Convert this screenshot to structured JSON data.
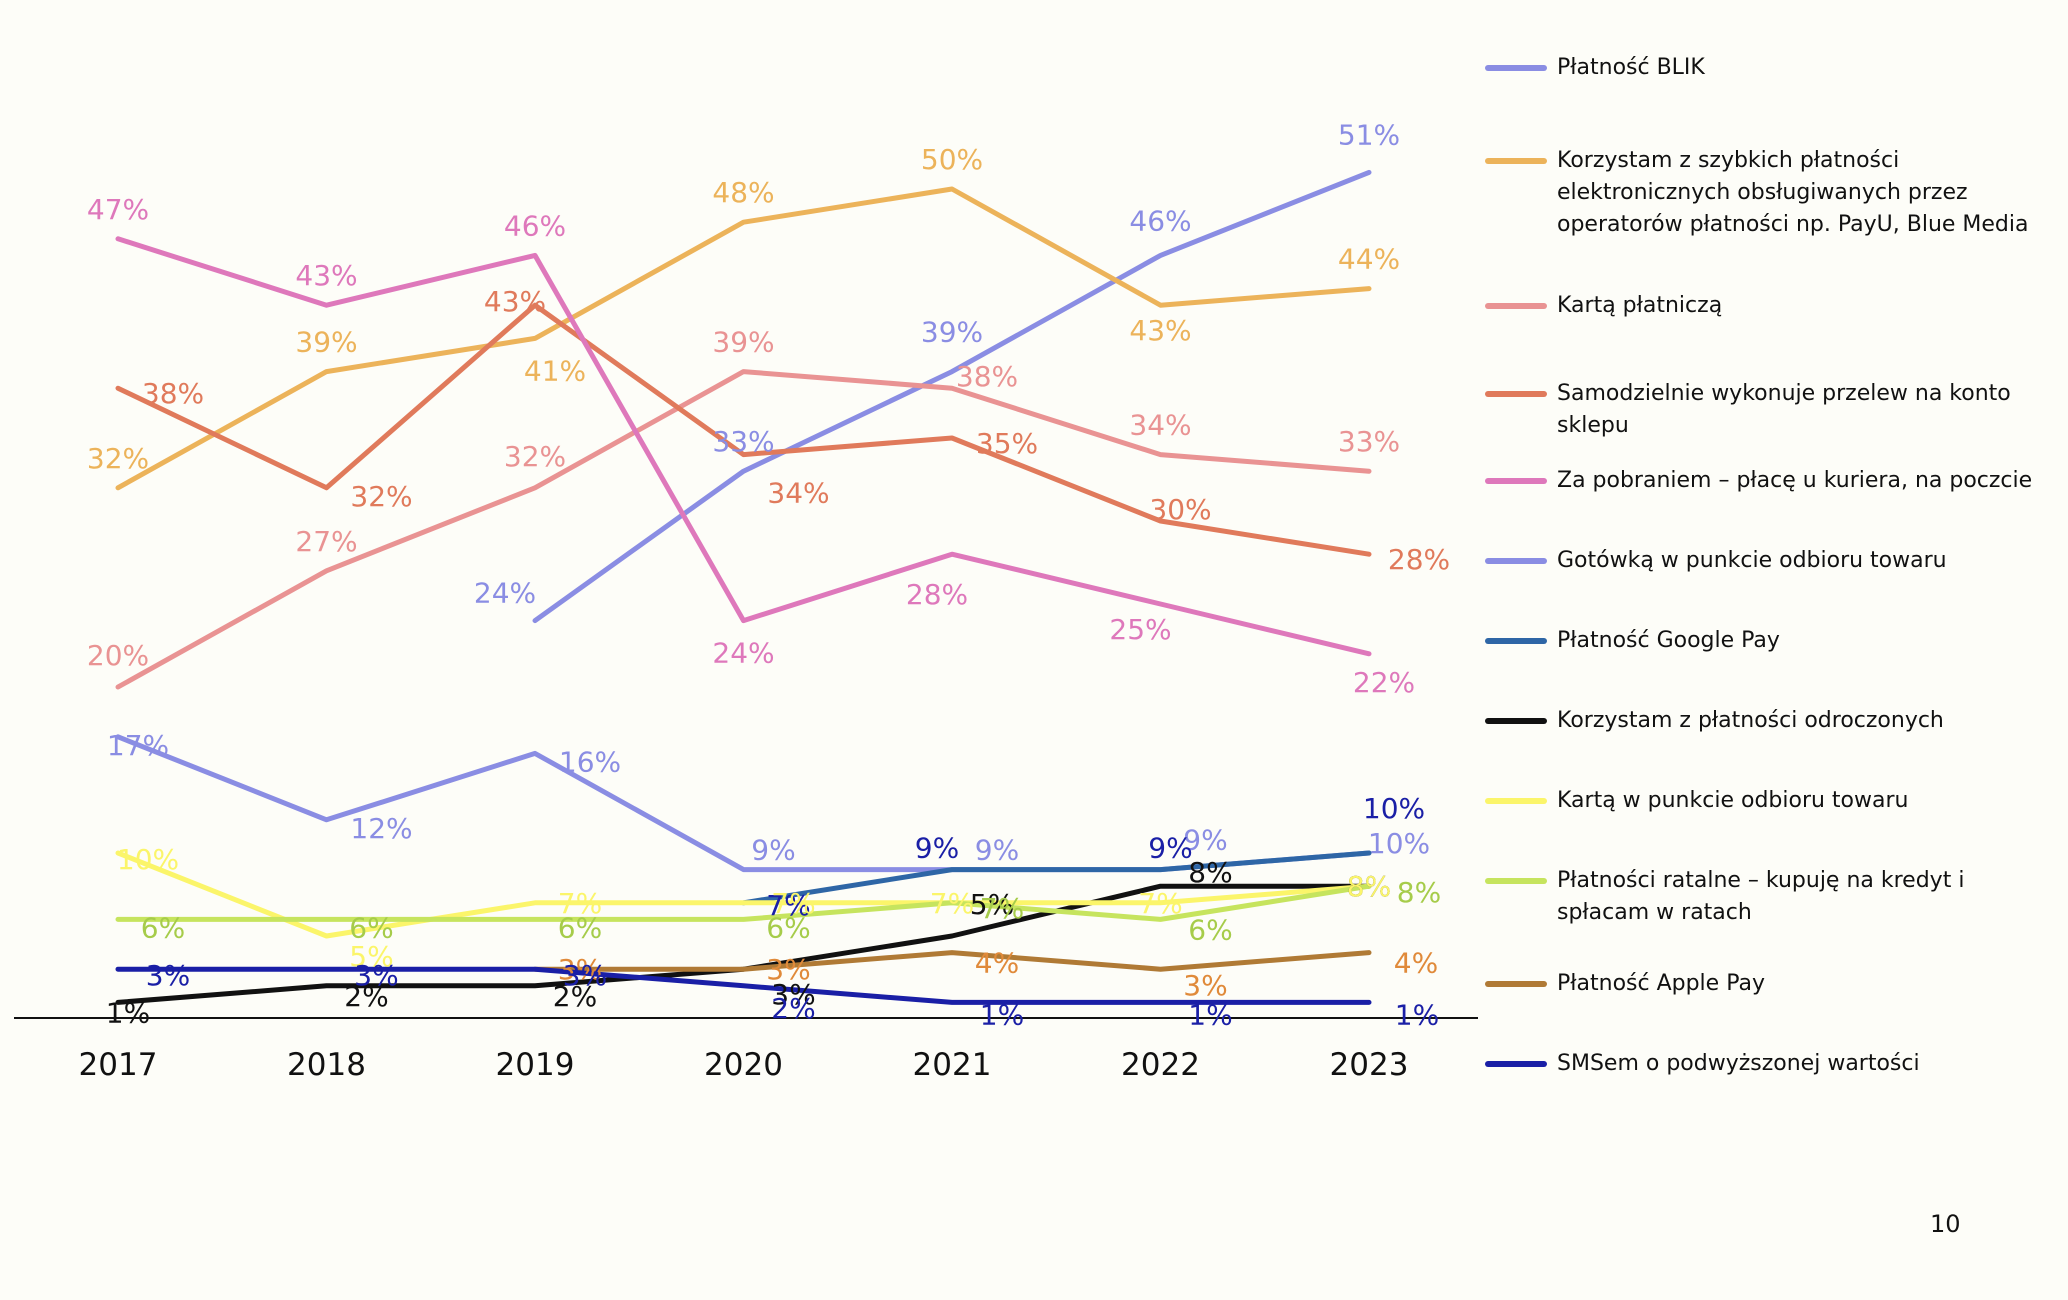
{
  "chart_data": {
    "type": "line",
    "title": "",
    "xlabel": "",
    "ylabel": "",
    "categories": [
      "2017",
      "2018",
      "2019",
      "2020",
      "2021",
      "2022",
      "2023"
    ],
    "ylim": [
      0,
      55
    ],
    "grid": false,
    "legend_position": "right",
    "series": [
      {
        "name": "Płatność BLIK",
        "color": "#8a8de3",
        "values": [
          null,
          null,
          24,
          33,
          39,
          46,
          51
        ],
        "labels": [
          "",
          "",
          "24%",
          "33%",
          "39%",
          "46%",
          "51%"
        ]
      },
      {
        "name": "Korzystam z szybkich płatności elektronicznych obsługiwanych przez operatorów płatności np. PayU, Blue Media",
        "color": "#ecb35a",
        "values": [
          32,
          39,
          41,
          48,
          50,
          43,
          44
        ],
        "labels": [
          "32%",
          "39%",
          "41%",
          "48%",
          "50%",
          "43%",
          "44%"
        ]
      },
      {
        "name": "Kartą płatniczą",
        "color": "#e99393",
        "values": [
          20,
          27,
          32,
          39,
          38,
          34,
          33
        ],
        "labels": [
          "20%",
          "27%",
          "32%",
          "39%",
          "38%",
          "34%",
          "33%"
        ]
      },
      {
        "name": "Samodzielnie wykonuje przelew na konto sklepu",
        "color": "#e07a5b",
        "values": [
          38,
          32,
          43,
          34,
          35,
          30,
          28
        ],
        "labels": [
          "38%",
          "32%",
          "43%",
          "34%",
          "35%",
          "30%",
          "28%"
        ]
      },
      {
        "name": "Za pobraniem – płacę u kuriera, na poczcie",
        "color": "#de78bb",
        "values": [
          47,
          43,
          46,
          24,
          28,
          25,
          22
        ],
        "labels": [
          "47%",
          "43%",
          "46%",
          "24%",
          "28%",
          "25%",
          "22%"
        ]
      },
      {
        "name": "Gotówką w punkcie odbioru towaru",
        "color": "#8a8de3",
        "values": [
          17,
          12,
          16,
          9,
          9,
          9,
          10
        ],
        "labels": [
          "17%",
          "12%",
          "16%",
          "9%",
          "9%",
          "9%",
          "10%"
        ]
      },
      {
        "name": "Płatność Google Pay",
        "color": "#2e66a6",
        "values": [
          null,
          null,
          null,
          7,
          9,
          9,
          10
        ],
        "labels": [
          "",
          "",
          "",
          "7%",
          "9%",
          "9%",
          "10%"
        ]
      },
      {
        "name": "Korzystam z płatności odroczonych",
        "color": "#111111",
        "values": [
          1,
          2,
          2,
          3,
          5,
          8,
          8
        ],
        "labels": [
          "1%",
          "2%",
          "2%",
          "3%",
          "5%",
          "8%",
          "8%"
        ]
      },
      {
        "name": "Kartą w punkcie odbioru towaru",
        "color": "#fbf56a",
        "values": [
          10,
          5,
          7,
          7,
          7,
          7,
          8
        ],
        "labels": [
          "10%",
          "5%",
          "7%",
          "7%",
          "7%",
          "7%",
          "8%"
        ]
      },
      {
        "name": "Płatności ratalne – kupuję na kredyt i spłacam w ratach",
        "color": "#c6e45e",
        "values": [
          6,
          6,
          6,
          6,
          7,
          6,
          8
        ],
        "labels": [
          "6%",
          "6%",
          "6%",
          "6%",
          "7%",
          "6%",
          "8%"
        ]
      },
      {
        "name": "Płatność Apple Pay",
        "color": "#b07a35",
        "values": [
          null,
          null,
          3,
          3,
          4,
          3,
          4
        ],
        "labels": [
          "",
          "",
          "3%",
          "3%",
          "4%",
          "3%",
          "4%"
        ]
      },
      {
        "name": "SMSem o podwyższonej wartości",
        "color": "#1a1fa6",
        "values": [
          3,
          3,
          3,
          2,
          1,
          1,
          1
        ],
        "labels": [
          "3%",
          "3%",
          "3%",
          "2%",
          "1%",
          "1%",
          "1%"
        ]
      }
    ]
  },
  "page_number": "10"
}
